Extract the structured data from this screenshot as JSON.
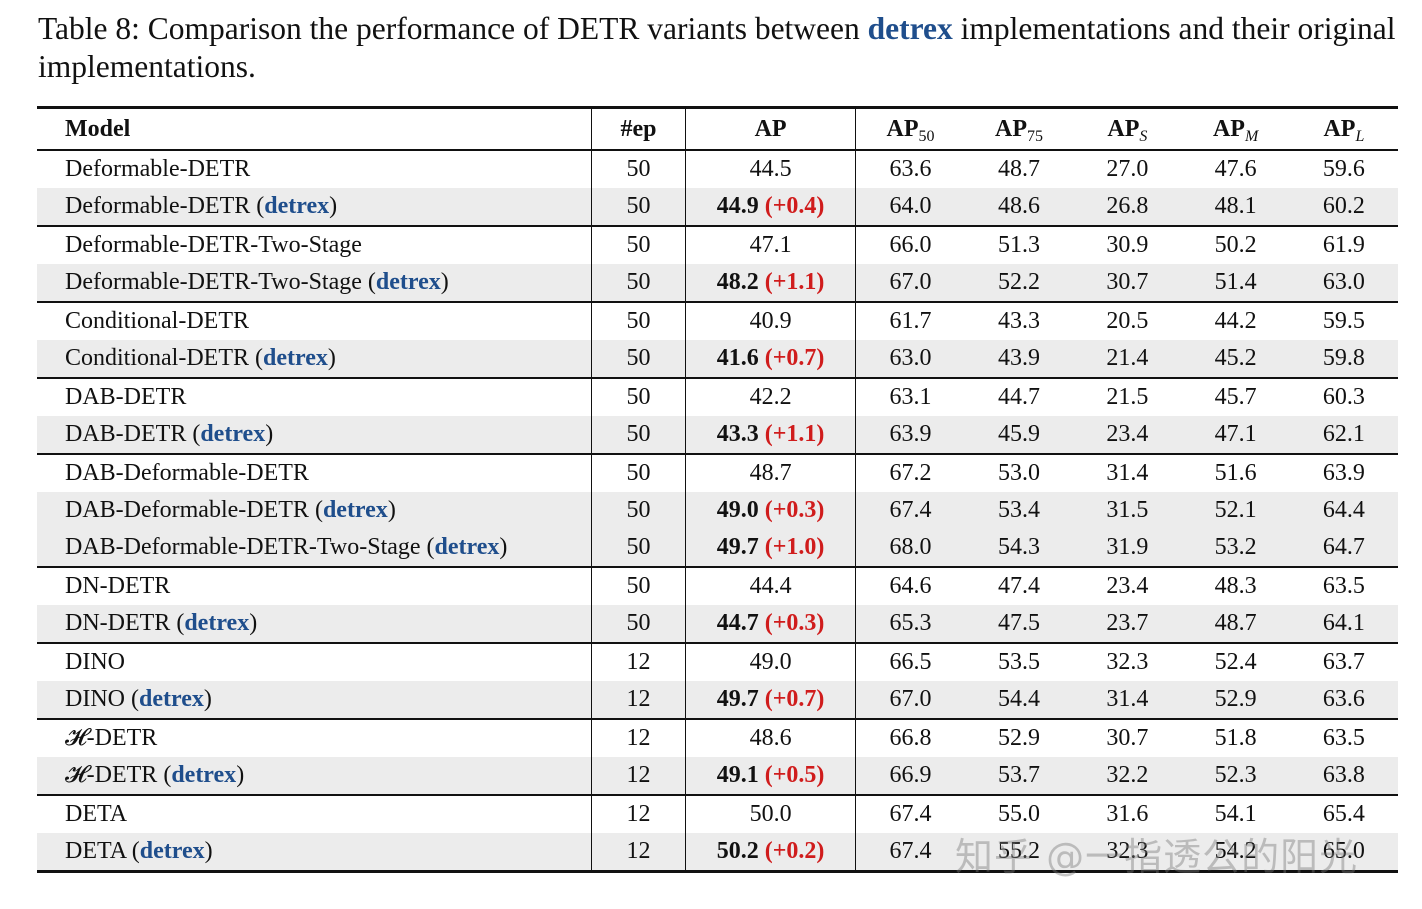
{
  "caption": {
    "prefix": "Table 8: Comparison the performance of DETR variants between ",
    "highlight": "detrex",
    "suffix": " implementations and their original implementations."
  },
  "header": {
    "model": "Model",
    "ep": "#ep",
    "ap": "AP",
    "ap50_base": "AP",
    "ap50_sub": "50",
    "ap75_base": "AP",
    "ap75_sub": "75",
    "aps_base": "AP",
    "aps_sub": "S",
    "apm_base": "AP",
    "apm_sub": "M",
    "apl_base": "AP",
    "apl_sub": "L"
  },
  "detrex_label": "detrex",
  "rows": [
    {
      "model": "Deformable-DETR",
      "ep": "50",
      "ap": "44.5",
      "ap50": "63.6",
      "ap75": "48.7",
      "aps": "27.0",
      "apm": "47.6",
      "apl": "59.6"
    },
    {
      "model": "Deformable-DETR",
      "detrex": true,
      "ep": "50",
      "ap": "44.9",
      "delta": "(+0.4)",
      "ap50": "64.0",
      "ap75": "48.6",
      "aps": "26.8",
      "apm": "48.1",
      "apl": "60.2"
    },
    {
      "model": "Deformable-DETR-Two-Stage",
      "ep": "50",
      "ap": "47.1",
      "ap50": "66.0",
      "ap75": "51.3",
      "aps": "30.9",
      "apm": "50.2",
      "apl": "61.9"
    },
    {
      "model": "Deformable-DETR-Two-Stage",
      "detrex": true,
      "ep": "50",
      "ap": "48.2",
      "delta": "(+1.1)",
      "ap50": "67.0",
      "ap75": "52.2",
      "aps": "30.7",
      "apm": "51.4",
      "apl": "63.0"
    },
    {
      "model": "Conditional-DETR",
      "ep": "50",
      "ap": "40.9",
      "ap50": "61.7",
      "ap75": "43.3",
      "aps": "20.5",
      "apm": "44.2",
      "apl": "59.5"
    },
    {
      "model": "Conditional-DETR",
      "detrex": true,
      "ep": "50",
      "ap": "41.6",
      "delta": "(+0.7)",
      "ap50": "63.0",
      "ap75": "43.9",
      "aps": "21.4",
      "apm": "45.2",
      "apl": "59.8"
    },
    {
      "model": "DAB-DETR",
      "ep": "50",
      "ap": "42.2",
      "ap50": "63.1",
      "ap75": "44.7",
      "aps": "21.5",
      "apm": "45.7",
      "apl": "60.3"
    },
    {
      "model": "DAB-DETR",
      "detrex": true,
      "ep": "50",
      "ap": "43.3",
      "delta": "(+1.1)",
      "ap50": "63.9",
      "ap75": "45.9",
      "aps": "23.4",
      "apm": "47.1",
      "apl": "62.1"
    },
    {
      "model": "DAB-Deformable-DETR",
      "ep": "50",
      "ap": "48.7",
      "ap50": "67.2",
      "ap75": "53.0",
      "aps": "31.4",
      "apm": "51.6",
      "apl": "63.9"
    },
    {
      "model": "DAB-Deformable-DETR",
      "detrex": true,
      "ep": "50",
      "ap": "49.0",
      "delta": "(+0.3)",
      "ap50": "67.4",
      "ap75": "53.4",
      "aps": "31.5",
      "apm": "52.1",
      "apl": "64.4"
    },
    {
      "model": "DAB-Deformable-DETR-Two-Stage",
      "detrex": true,
      "ep": "50",
      "ap": "49.7",
      "delta": "(+1.0)",
      "ap50": "68.0",
      "ap75": "54.3",
      "aps": "31.9",
      "apm": "53.2",
      "apl": "64.7"
    },
    {
      "model": "DN-DETR",
      "ep": "50",
      "ap": "44.4",
      "ap50": "64.6",
      "ap75": "47.4",
      "aps": "23.4",
      "apm": "48.3",
      "apl": "63.5"
    },
    {
      "model": "DN-DETR",
      "detrex": true,
      "ep": "50",
      "ap": "44.7",
      "delta": "(+0.3)",
      "ap50": "65.3",
      "ap75": "47.5",
      "aps": "23.7",
      "apm": "48.7",
      "apl": "64.1"
    },
    {
      "model": "DINO",
      "ep": "12",
      "ap": "49.0",
      "ap50": "66.5",
      "ap75": "53.5",
      "aps": "32.3",
      "apm": "52.4",
      "apl": "63.7"
    },
    {
      "model": "DINO",
      "detrex": true,
      "ep": "12",
      "ap": "49.7",
      "delta": "(+0.7)",
      "ap50": "67.0",
      "ap75": "54.4",
      "aps": "31.4",
      "apm": "52.9",
      "apl": "63.6"
    },
    {
      "model": "𝓗-DETR",
      "ep": "12",
      "ap": "48.6",
      "ap50": "66.8",
      "ap75": "52.9",
      "aps": "30.7",
      "apm": "51.8",
      "apl": "63.5"
    },
    {
      "model": "𝓗-DETR",
      "detrex": true,
      "ep": "12",
      "ap": "49.1",
      "delta": "(+0.5)",
      "ap50": "66.9",
      "ap75": "53.7",
      "aps": "32.2",
      "apm": "52.3",
      "apl": "63.8"
    },
    {
      "model": "DETA",
      "ep": "12",
      "ap": "50.0",
      "ap50": "67.4",
      "ap75": "55.0",
      "aps": "31.6",
      "apm": "54.1",
      "apl": "65.4"
    },
    {
      "model": "DETA",
      "detrex": true,
      "ep": "12",
      "ap": "50.2",
      "delta": "(+0.2)",
      "ap50": "67.4",
      "ap75": "55.2",
      "aps": "32.3",
      "apm": "54.2",
      "apl": "65.0"
    }
  ],
  "watermark": "知乎 @一指透公的阳光"
}
